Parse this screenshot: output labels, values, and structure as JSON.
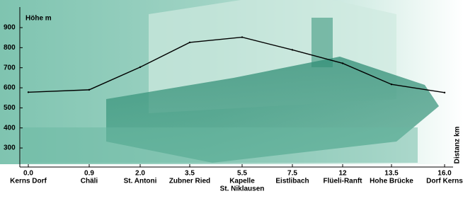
{
  "chart_data": {
    "type": "line",
    "y_label": "Höhe m",
    "x_label": "Distanz km",
    "distances": [
      "0.0",
      "0.9",
      "2.0",
      "3.5",
      "5.5",
      "7.5",
      "12",
      "13.5",
      "16.0"
    ],
    "categories": [
      [
        "Kerns Dorf"
      ],
      [
        "Chäli"
      ],
      [
        "St. Antoni"
      ],
      [
        "Zubner Ried"
      ],
      [
        "Kapelle",
        "St. Niklausen"
      ],
      [
        "Eistlibach"
      ],
      [
        "Flüeli-Ranft"
      ],
      [
        "Hohe Brücke"
      ],
      [
        "Dorf Kerns"
      ]
    ],
    "values": [
      578,
      590,
      703,
      826,
      852,
      789,
      722,
      617,
      576
    ],
    "color": "#000000",
    "ylim": [
      205,
      960
    ],
    "yticks": [
      300,
      400,
      500,
      600,
      700,
      800,
      900
    ]
  }
}
